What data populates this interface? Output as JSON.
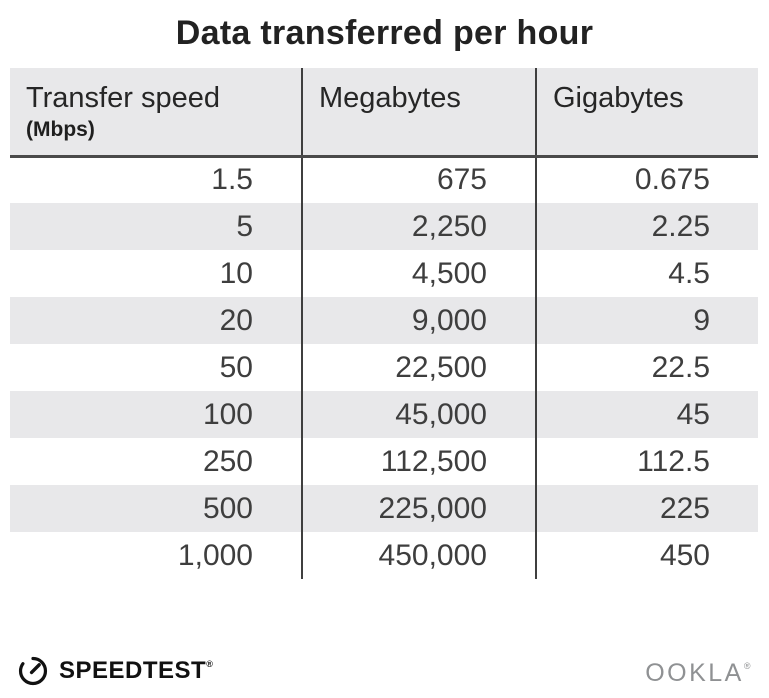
{
  "title": "Data transferred per hour",
  "table": {
    "columns": [
      {
        "label": "Transfer speed",
        "sublabel": "(Mbps)"
      },
      {
        "label": "Megabytes",
        "sublabel": ""
      },
      {
        "label": "Gigabytes",
        "sublabel": ""
      }
    ],
    "rows": [
      [
        "1.5",
        "675",
        "0.675"
      ],
      [
        "5",
        "2,250",
        "2.25"
      ],
      [
        "10",
        "4,500",
        "4.5"
      ],
      [
        "20",
        "9,000",
        "9"
      ],
      [
        "50",
        "22,500",
        "22.5"
      ],
      [
        "100",
        "45,000",
        "45"
      ],
      [
        "250",
        "112,500",
        "112.5"
      ],
      [
        "500",
        "225,000",
        "225"
      ],
      [
        "1,000",
        "450,000",
        "450"
      ]
    ]
  },
  "footer": {
    "speedtest_label": "SPEEDTEST",
    "speedtest_trademark": "®",
    "ookla_label": "OOKLA",
    "ookla_trademark": "®"
  },
  "colors": {
    "stripe_gray": "#e8e8ea",
    "header_bg": "#e8e8ea",
    "divider": "#3f3f3f",
    "header_border": "#4a4a4a",
    "title_text": "#222222",
    "number_text": "#3e3e3e",
    "logo_black": "#111111",
    "ookla_gray": "#8f9193"
  },
  "chart_data": {
    "type": "table",
    "title": "Data transferred per hour",
    "columns": [
      "Transfer speed (Mbps)",
      "Megabytes",
      "Gigabytes"
    ],
    "rows": [
      [
        1.5,
        675,
        0.675
      ],
      [
        5,
        2250,
        2.25
      ],
      [
        10,
        4500,
        4.5
      ],
      [
        20,
        9000,
        9
      ],
      [
        50,
        22500,
        22.5
      ],
      [
        100,
        45000,
        45
      ],
      [
        250,
        112500,
        112.5
      ],
      [
        500,
        225000,
        225
      ],
      [
        1000,
        450000,
        450
      ]
    ]
  }
}
